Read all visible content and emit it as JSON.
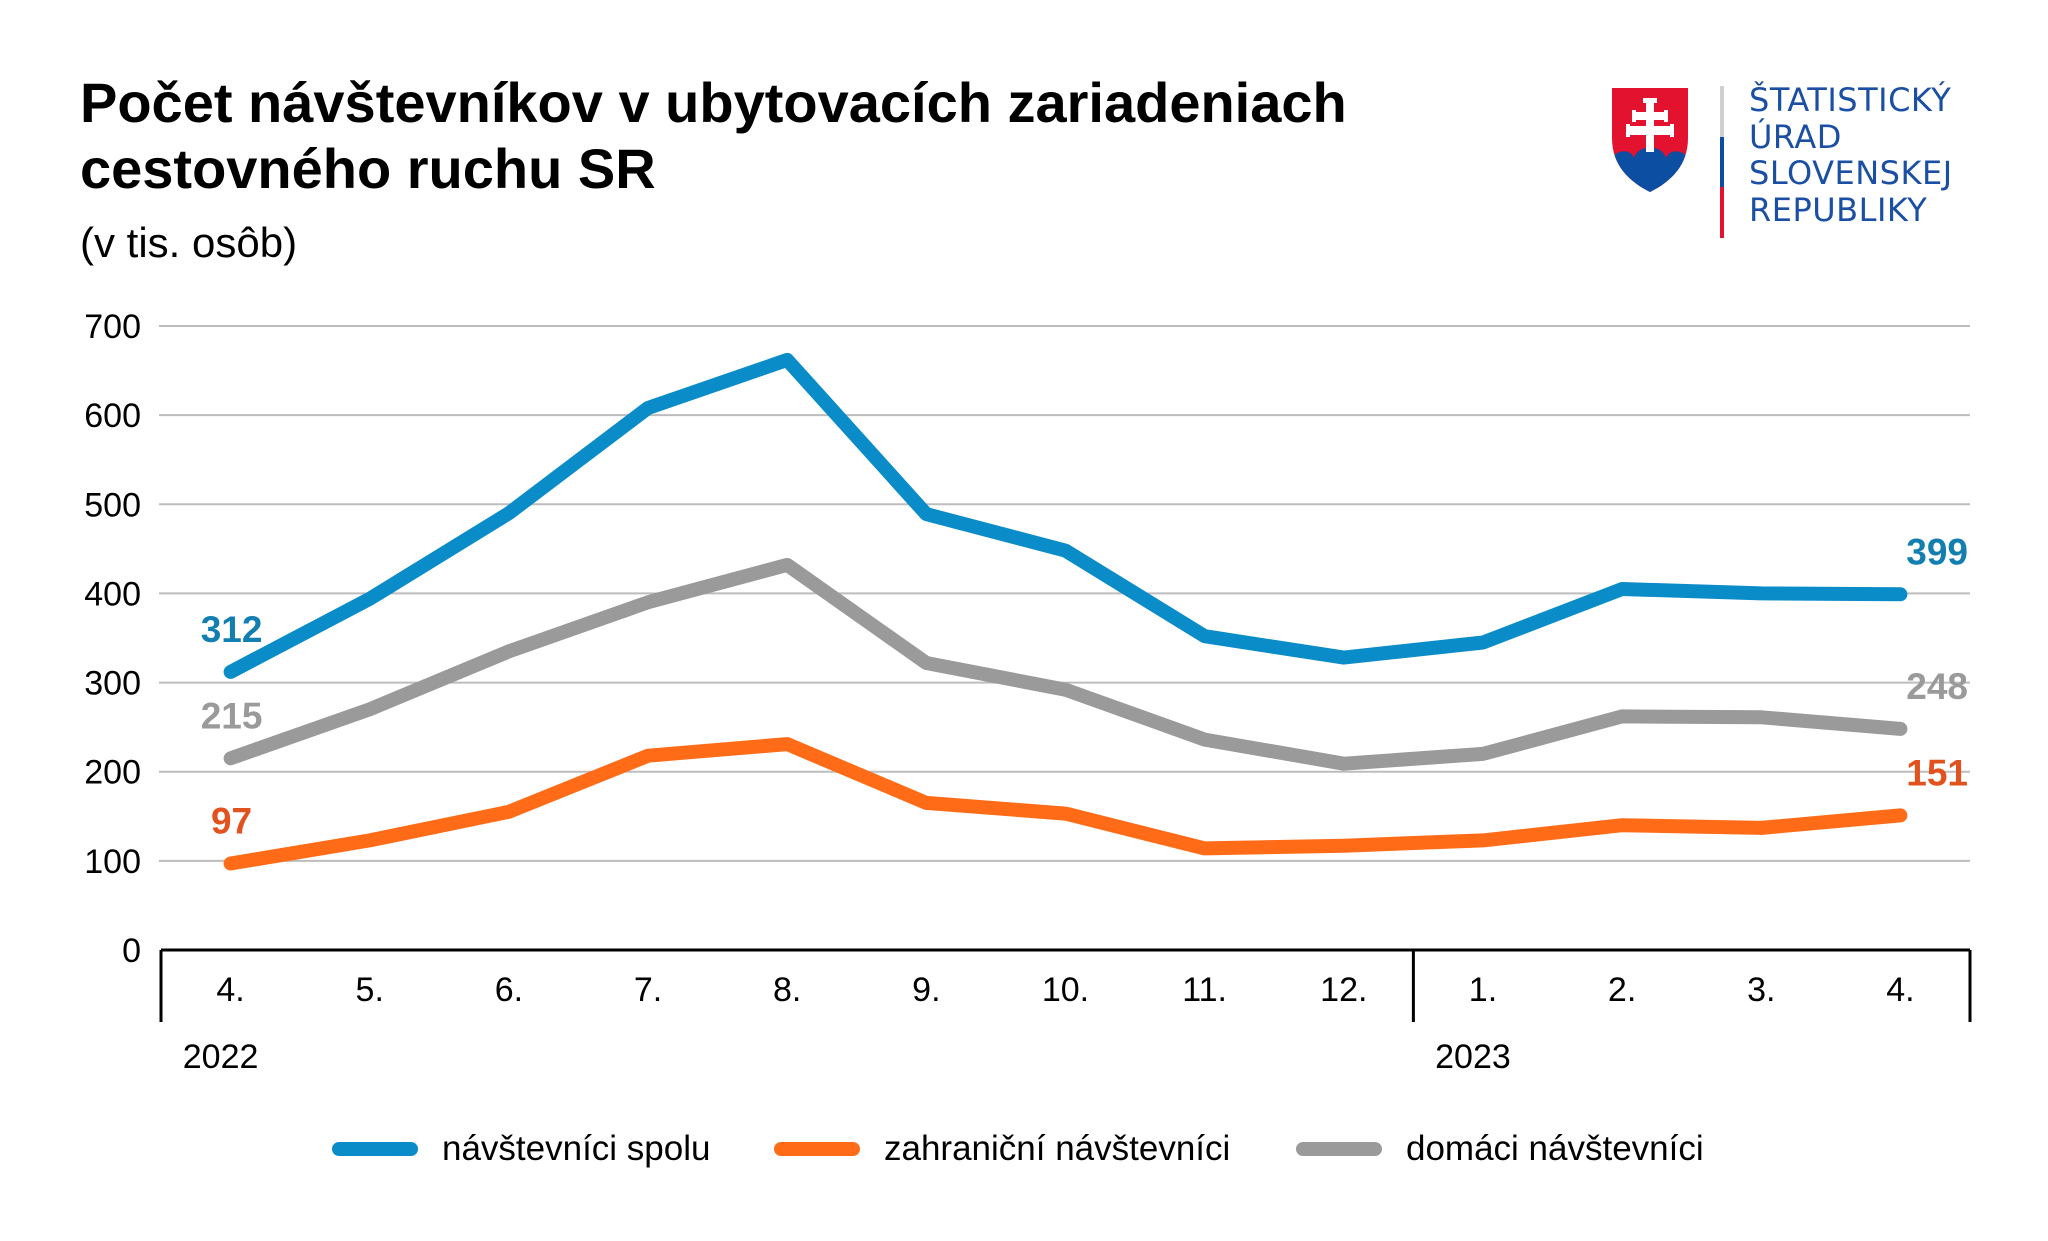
{
  "header": {
    "title_line1": "Počet návštevníkov v ubytovacích zariadeniach",
    "title_line2": "cestovného ruchu SR",
    "subtitle": "(v tis. osôb)"
  },
  "logo": {
    "icon": "slovak-coat-of-arms-icon",
    "lines": [
      "ŠTATISTICKÝ",
      "ÚRAD",
      "SLOVENSKEJ",
      "REPUBLIKY"
    ],
    "colors": {
      "red": "#e3122f",
      "blue": "#0b4ea2",
      "text": "#1a4fa3",
      "divider_top": "#cfcfcf"
    }
  },
  "chart_data": {
    "type": "line",
    "title": "Počet návštevníkov v ubytovacích zariadeniach cestovného ruchu SR",
    "subtitle": "(v tis. osôb)",
    "xlabel": "",
    "ylabel": "",
    "categories": [
      "4.",
      "5.",
      "6.",
      "7.",
      "8.",
      "9.",
      "10.",
      "11.",
      "12.",
      "1.",
      "2.",
      "3.",
      "4."
    ],
    "year_groups": [
      {
        "label": "2022",
        "start_index": 0,
        "end_index": 8
      },
      {
        "label": "2023",
        "start_index": 9,
        "end_index": 12
      }
    ],
    "ylim": [
      0,
      700
    ],
    "yticks": [
      0,
      100,
      200,
      300,
      400,
      500,
      600,
      700
    ],
    "grid": true,
    "legend_position": "bottom",
    "series": [
      {
        "name": "návštevníci spolu",
        "color": "#0a8cc8",
        "label_color": "#137fb0",
        "values": [
          312,
          394,
          490,
          608,
          662,
          489,
          448,
          352,
          328,
          345,
          405,
          400,
          399
        ],
        "labels": [
          {
            "index": 0,
            "text": "312"
          },
          {
            "index": 12,
            "text": "399"
          }
        ]
      },
      {
        "name": "zahraniční návštevníci",
        "color": "#ff6b17",
        "label_color": "#e2521f",
        "values": [
          97,
          123,
          155,
          218,
          231,
          165,
          153,
          114,
          117,
          123,
          140,
          137,
          151
        ],
        "labels": [
          {
            "index": 0,
            "text": "97"
          },
          {
            "index": 12,
            "text": "151"
          }
        ]
      },
      {
        "name": "domáci návštevníci",
        "color": "#9a9a9a",
        "label_color": "#9a9a9a",
        "values": [
          215,
          270,
          335,
          390,
          432,
          322,
          292,
          236,
          209,
          220,
          262,
          261,
          248
        ],
        "labels": [
          {
            "index": 0,
            "text": "215"
          },
          {
            "index": 12,
            "text": "248"
          }
        ]
      }
    ]
  }
}
